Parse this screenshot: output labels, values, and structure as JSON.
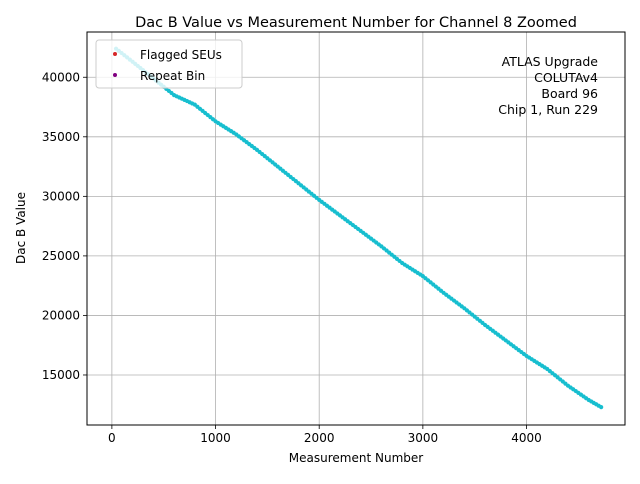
{
  "chart_data": {
    "type": "scatter",
    "title": "Dac B Value vs Measurement Number for Channel 8 Zoomed",
    "xlabel": "Measurement Number",
    "ylabel": "Dac B Value",
    "xlim": [
      -240,
      4950
    ],
    "ylim": [
      10800,
      43800
    ],
    "xticks": [
      0,
      1000,
      2000,
      3000,
      4000
    ],
    "yticks": [
      15000,
      20000,
      25000,
      30000,
      35000,
      40000
    ],
    "grid": true,
    "legend": {
      "placement": "upper-left",
      "entries": [
        "Flagged SEUs",
        "Repeat Bin"
      ]
    },
    "annotation": [
      "ATLAS Upgrade",
      "COLUTAv4",
      "Board 96",
      "Chip 1, Run 229"
    ],
    "colors": {
      "data": "#17becf",
      "flagged": "#d62728",
      "repeat": "#800080",
      "grid": "#b0b0b0"
    },
    "series": [
      {
        "values": [
          [
            40,
            42400
          ],
          [
            200,
            41300
          ],
          [
            400,
            39900
          ],
          [
            600,
            38500
          ],
          [
            800,
            37700
          ],
          [
            1000,
            36300
          ],
          [
            1200,
            35200
          ],
          [
            1400,
            33900
          ],
          [
            1600,
            32500
          ],
          [
            1800,
            31100
          ],
          [
            2000,
            29700
          ],
          [
            2200,
            28400
          ],
          [
            2400,
            27100
          ],
          [
            2600,
            25800
          ],
          [
            2800,
            24400
          ],
          [
            3000,
            23300
          ],
          [
            3200,
            21900
          ],
          [
            3400,
            20600
          ],
          [
            3600,
            19200
          ],
          [
            3800,
            17900
          ],
          [
            4000,
            16600
          ],
          [
            4200,
            15500
          ],
          [
            4400,
            14100
          ],
          [
            4600,
            12900
          ],
          [
            4720,
            12300
          ]
        ]
      },
      {
        "name": "Flagged SEUs",
        "values": []
      },
      {
        "name": "Repeat Bin",
        "values": []
      }
    ]
  }
}
